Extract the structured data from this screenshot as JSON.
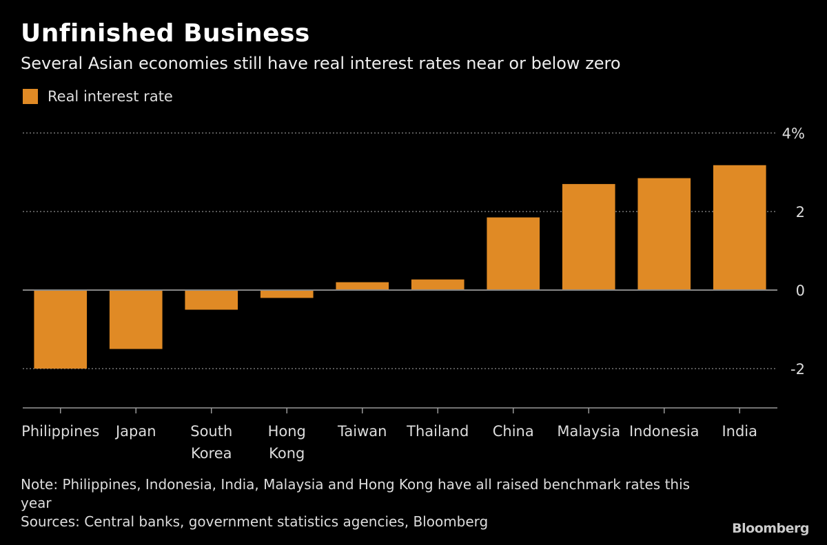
{
  "chart_data": {
    "type": "bar",
    "title": "Unfinished Business",
    "subtitle": "Several Asian economies still have real interest rates near or below zero",
    "categories": [
      "Philippines",
      "Japan",
      "South Korea",
      "Hong Kong",
      "Taiwan",
      "Thailand",
      "China",
      "Malaysia",
      "Indonesia",
      "India"
    ],
    "category_lines": [
      [
        "Philippines"
      ],
      [
        "Japan"
      ],
      [
        "South",
        "Korea"
      ],
      [
        "Hong",
        "Kong"
      ],
      [
        "Taiwan"
      ],
      [
        "Thailand"
      ],
      [
        "China"
      ],
      [
        "Malaysia"
      ],
      [
        "Indonesia"
      ],
      [
        "India"
      ]
    ],
    "series": [
      {
        "name": "Real interest rate",
        "values": [
          -2.0,
          -1.5,
          -0.5,
          -0.2,
          0.2,
          0.27,
          1.85,
          2.7,
          2.85,
          3.18
        ],
        "color": "#e08a25"
      }
    ],
    "ylim": [
      -3,
      4
    ],
    "yticks": [
      4,
      2,
      0,
      -2
    ],
    "ytick_labels": [
      "4%",
      "2",
      "0",
      "-2"
    ],
    "grid": true,
    "legend": "top-left",
    "y_axis_side": "right"
  },
  "note": "Note: Philippines, Indonesia, India, Malaysia and Hong Kong have all raised benchmark rates this year",
  "sources": "Sources: Central banks, government statistics agencies, Bloomberg",
  "logo": "Bloomberg",
  "colors": {
    "background": "#000000",
    "bar": "#e08a25",
    "grid": "#777777",
    "zero_line": "#888888"
  }
}
